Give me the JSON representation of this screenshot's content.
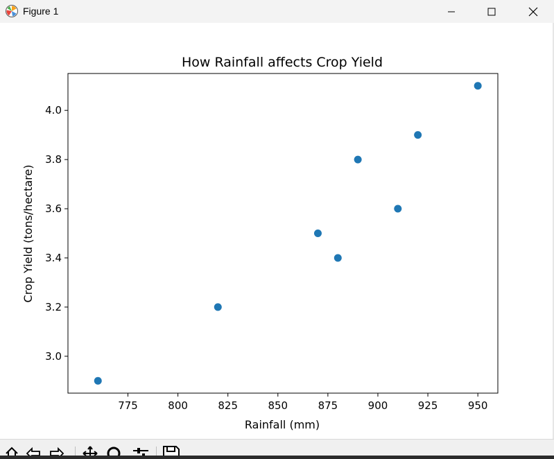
{
  "window": {
    "title": "Figure 1",
    "icon": "matplotlib-logo-icon",
    "controls": [
      "minimize-icon",
      "maximize-icon",
      "close-icon"
    ]
  },
  "toolbar": {
    "tools": [
      "home-icon",
      "back-arrow-icon",
      "forward-arrow-icon",
      "pan-icon",
      "zoom-icon",
      "configure-subplots-icon",
      "save-icon"
    ]
  },
  "chart_data": {
    "type": "scatter",
    "title": "How Rainfall affects Crop Yield",
    "xlabel": "Rainfall (mm)",
    "ylabel": "Crop Yield (tons/hectare)",
    "xlim": [
      745,
      960
    ],
    "ylim": [
      2.85,
      4.15
    ],
    "xticks": [
      775,
      800,
      825,
      850,
      875,
      900,
      925,
      950
    ],
    "yticks": [
      3.0,
      3.2,
      3.4,
      3.6,
      3.8,
      4.0
    ],
    "xtick_labels": [
      "775",
      "800",
      "825",
      "850",
      "875",
      "900",
      "925",
      "950"
    ],
    "ytick_labels": [
      "3.0",
      "3.2",
      "3.4",
      "3.6",
      "3.8",
      "4.0"
    ],
    "grid": false,
    "marker_color": "#1f77b4",
    "x": [
      760,
      820,
      870,
      880,
      890,
      910,
      920,
      950
    ],
    "y": [
      2.9,
      3.2,
      3.5,
      3.4,
      3.8,
      3.6,
      3.9,
      4.1
    ]
  }
}
